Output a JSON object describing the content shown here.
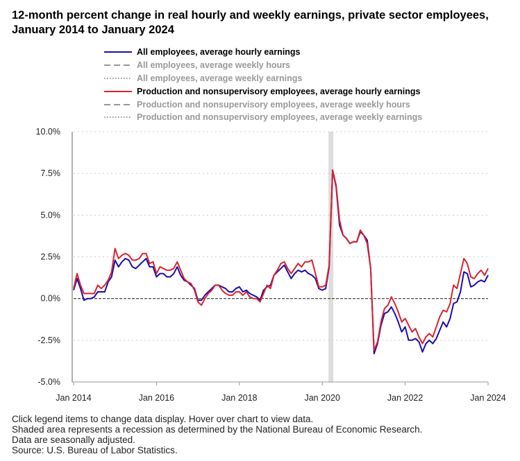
{
  "title": "12-month percent change in real hourly and weekly earnings, private sector employees, January 2014 to January 2024",
  "legend": [
    {
      "label": "All employees, average hourly earnings",
      "color": "#1a0dab",
      "style": "solid",
      "active": true
    },
    {
      "label": "All employees, average weekly hours",
      "color": "#777777",
      "style": "dashed",
      "active": false
    },
    {
      "label": "All employees, average weekly earnings",
      "color": "#777777",
      "style": "dotted",
      "active": false
    },
    {
      "label": "Production and nonsupervisory employees, average hourly earnings",
      "color": "#d9232e",
      "style": "solid",
      "active": true
    },
    {
      "label": "Production and nonsupervisory employees, average weekly hours",
      "color": "#777777",
      "style": "dashed",
      "active": false
    },
    {
      "label": "Production and nonsupervisory employees, average weekly earnings",
      "color": "#777777",
      "style": "dotted",
      "active": false
    }
  ],
  "notes": [
    "Click legend items to change data display. Hover over chart to view data.",
    "Shaded area represents a recession as determined by the National Bureau of Economic Research.",
    "Data are seasonally adjusted.",
    "Source: U.S. Bureau of Labor Statistics."
  ],
  "chart_data": {
    "type": "line",
    "x_start": "2014-01",
    "x_end": "2024-01",
    "frequency": "monthly",
    "ylim": [
      -5,
      10
    ],
    "yticks": [
      "10.0%",
      "7.5%",
      "5.0%",
      "2.5%",
      "0.0%",
      "-2.5%",
      "-5.0%"
    ],
    "ytick_values": [
      10,
      7.5,
      5,
      2.5,
      0,
      -2.5,
      -5
    ],
    "xticks": [
      "Jan 2014",
      "Jan 2016",
      "Jan 2018",
      "Jan 2020",
      "Jan 2022",
      "Jan 2024"
    ],
    "xtick_month_index": [
      0,
      24,
      48,
      72,
      96,
      120
    ],
    "grid": "horizontal dotted",
    "recession": {
      "start": "2020-03",
      "end": "2020-04",
      "color": "#dddddd"
    },
    "series": [
      {
        "name": "All employees, average hourly earnings",
        "color": "#1a0dab",
        "values": [
          0.5,
          1.2,
          0.6,
          -0.1,
          0.0,
          0.0,
          0.1,
          0.4,
          0.4,
          0.4,
          1.0,
          1.3,
          2.3,
          1.9,
          2.2,
          2.4,
          2.3,
          1.9,
          1.8,
          2.0,
          2.2,
          2.4,
          1.9,
          1.9,
          1.3,
          1.5,
          1.5,
          1.3,
          1.3,
          1.5,
          1.9,
          1.4,
          1.1,
          1.0,
          0.8,
          0.6,
          -0.1,
          -0.1,
          0.2,
          0.4,
          0.6,
          0.8,
          0.8,
          0.7,
          0.6,
          0.4,
          0.4,
          0.6,
          0.7,
          0.4,
          0.5,
          0.3,
          0.2,
          0.1,
          -0.1,
          0.5,
          0.7,
          0.8,
          1.4,
          1.6,
          1.8,
          2.0,
          1.6,
          1.2,
          1.5,
          1.7,
          1.6,
          1.7,
          1.5,
          1.4,
          1.2,
          0.6,
          0.5,
          0.6,
          1.9,
          7.7,
          6.7,
          4.4,
          3.8,
          3.6,
          3.3,
          3.4,
          3.4,
          4.0,
          3.8,
          3.5,
          1.8,
          -3.3,
          -2.7,
          -1.6,
          -0.9,
          -0.8,
          -0.5,
          -0.9,
          -1.4,
          -2.0,
          -1.7,
          -2.5,
          -2.5,
          -2.4,
          -2.6,
          -3.2,
          -2.7,
          -2.5,
          -2.7,
          -2.4,
          -1.9,
          -1.4,
          -1.7,
          -1.2,
          -0.3,
          -0.2,
          0.4,
          1.6,
          1.5,
          0.7,
          0.8,
          1.0,
          1.1,
          1.0,
          1.4
        ]
      },
      {
        "name": "Production and nonsupervisory employees, average hourly earnings",
        "color": "#d9232e",
        "values": [
          0.6,
          1.5,
          0.8,
          0.3,
          0.3,
          0.3,
          0.3,
          0.8,
          0.6,
          0.8,
          1.1,
          1.6,
          3.0,
          2.4,
          2.6,
          2.7,
          2.6,
          2.3,
          2.3,
          2.4,
          2.7,
          2.7,
          2.1,
          2.2,
          1.5,
          1.9,
          1.8,
          1.7,
          1.7,
          1.8,
          2.2,
          1.7,
          1.2,
          1.0,
          0.9,
          0.5,
          -0.2,
          -0.4,
          0.0,
          0.3,
          0.5,
          0.8,
          0.8,
          0.5,
          0.3,
          0.2,
          0.2,
          0.4,
          0.4,
          0.2,
          0.4,
          0.1,
          0.0,
          0.0,
          -0.2,
          0.3,
          0.8,
          0.6,
          1.4,
          1.7,
          2.1,
          2.2,
          1.8,
          1.5,
          1.8,
          2.1,
          1.9,
          2.2,
          2.2,
          2.3,
          1.5,
          0.7,
          0.7,
          0.8,
          2.0,
          7.7,
          6.8,
          4.7,
          3.8,
          3.6,
          3.3,
          3.4,
          3.4,
          4.1,
          3.8,
          3.3,
          1.8,
          -3.1,
          -2.6,
          -1.4,
          -0.6,
          -0.4,
          0.1,
          -0.3,
          -0.8,
          -1.4,
          -1.2,
          -1.6,
          -2.0,
          -1.8,
          -2.3,
          -2.7,
          -2.3,
          -2.1,
          -2.3,
          -1.7,
          -1.1,
          -0.7,
          -0.8,
          -0.3,
          0.8,
          0.6,
          1.5,
          2.4,
          2.1,
          1.3,
          1.2,
          1.5,
          1.7,
          1.4,
          1.8
        ]
      }
    ]
  }
}
